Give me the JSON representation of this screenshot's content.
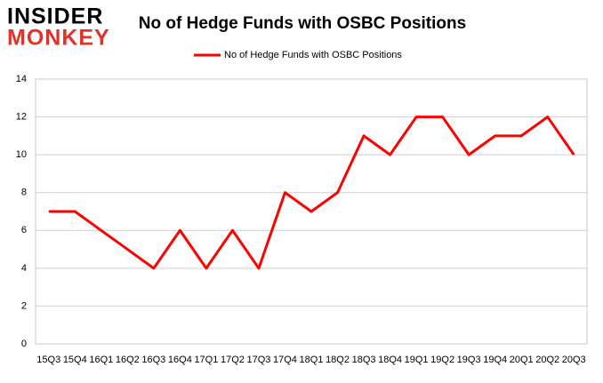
{
  "chart_data": {
    "type": "line",
    "logo": [
      "INSIDER",
      "MONKEY"
    ],
    "title": "No of Hedge Funds with OSBC Positions",
    "categories": [
      "15Q3",
      "15Q4",
      "16Q1",
      "16Q2",
      "16Q3",
      "16Q4",
      "17Q1",
      "17Q2",
      "17Q3",
      "17Q4",
      "18Q1",
      "18Q2",
      "18Q3",
      "18Q4",
      "19Q1",
      "19Q2",
      "19Q3",
      "19Q4",
      "20Q1",
      "20Q2",
      "20Q3"
    ],
    "series": [
      {
        "name": "No of Hedge Funds with OSBC Positions",
        "color": "#ff0000",
        "values": [
          7,
          7,
          6,
          5,
          4,
          6,
          4,
          6,
          4,
          8,
          7,
          8,
          11,
          10,
          12,
          12,
          10,
          11,
          11,
          12,
          10
        ]
      }
    ],
    "ylim": [
      0,
      14
    ],
    "yticks": [
      0,
      2,
      4,
      6,
      8,
      10,
      12,
      14
    ],
    "grid": true,
    "legend": "top"
  }
}
